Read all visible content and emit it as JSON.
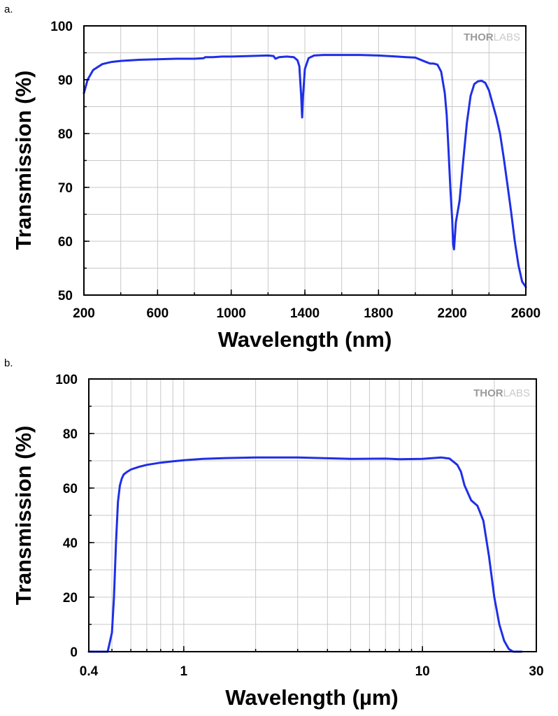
{
  "colors": {
    "series": "#1f2fe6",
    "grid": "#c8c8c8",
    "axis": "#000000",
    "watermark": "#a8a8a8"
  },
  "chart_data": [
    {
      "panel_label": "a.",
      "type": "line",
      "xlabel": "Wavelength (nm)",
      "ylabel": "Transmission (%)",
      "xlim": [
        200,
        2600
      ],
      "ylim": [
        50,
        100
      ],
      "x_scale": "linear",
      "grid": true,
      "x_ticks": [
        200,
        600,
        1000,
        1400,
        1800,
        2200,
        2600
      ],
      "x_tick_labels": [
        "200",
        "600",
        "1000",
        "1400",
        "1800",
        "2200",
        "2600"
      ],
      "y_ticks": [
        50,
        60,
        70,
        80,
        90,
        100
      ],
      "y_tick_labels": [
        "50",
        "60",
        "70",
        "80",
        "90",
        "100"
      ],
      "watermark": {
        "bold_part": "THOR",
        "light_part": "LABS"
      },
      "series": [
        {
          "x": [
            200,
            220,
            250,
            300,
            350,
            400,
            500,
            600,
            700,
            800,
            850,
            860,
            900,
            950,
            1000,
            1100,
            1200,
            1230,
            1240,
            1260,
            1300,
            1340,
            1360,
            1370,
            1380,
            1385,
            1390,
            1400,
            1420,
            1450,
            1500,
            1600,
            1700,
            1800,
            1900,
            1950,
            2000,
            2050,
            2080,
            2100,
            2120,
            2140,
            2160,
            2170,
            2180,
            2190,
            2200,
            2205,
            2210,
            2215,
            2220,
            2240,
            2260,
            2280,
            2300,
            2320,
            2340,
            2360,
            2380,
            2400,
            2420,
            2440,
            2460,
            2480,
            2500,
            2520,
            2540,
            2560,
            2580,
            2600
          ],
          "y": [
            87.5,
            90,
            91.8,
            92.9,
            93.3,
            93.5,
            93.7,
            93.8,
            93.9,
            93.9,
            94.0,
            94.2,
            94.2,
            94.3,
            94.3,
            94.4,
            94.5,
            94.4,
            93.9,
            94.2,
            94.3,
            94.2,
            93.6,
            92.5,
            87,
            83,
            87,
            92,
            94.0,
            94.5,
            94.6,
            94.6,
            94.6,
            94.5,
            94.3,
            94.2,
            94.1,
            93.4,
            93.0,
            93.0,
            92.8,
            91.5,
            87.5,
            83.5,
            77,
            70,
            64,
            59.5,
            58.5,
            61,
            63.5,
            67.5,
            75,
            82,
            87,
            89.2,
            89.7,
            89.8,
            89.4,
            88,
            85.5,
            83,
            80,
            75.5,
            70.5,
            65.5,
            60,
            55.5,
            52.5,
            51.5
          ]
        }
      ]
    },
    {
      "panel_label": "b.",
      "type": "line",
      "xlabel": "Wavelength (µm)",
      "ylabel": "Transmission (%)",
      "xlim": [
        0.4,
        30
      ],
      "ylim": [
        0,
        100
      ],
      "x_scale": "log",
      "grid": true,
      "x_ticks": [
        0.4,
        1,
        10,
        30
      ],
      "x_tick_labels": [
        "0.4",
        "1",
        "10",
        "30"
      ],
      "y_ticks": [
        0,
        20,
        40,
        60,
        80,
        100
      ],
      "y_tick_labels": [
        "0",
        "20",
        "40",
        "60",
        "80",
        "100"
      ],
      "watermark": {
        "bold_part": "THOR",
        "light_part": "LABS"
      },
      "series": [
        {
          "x": [
            0.4,
            0.48,
            0.5,
            0.51,
            0.52,
            0.53,
            0.54,
            0.55,
            0.56,
            0.58,
            0.6,
            0.65,
            0.7,
            0.8,
            0.9,
            1.0,
            1.2,
            1.5,
            2.0,
            3.0,
            5.0,
            7.0,
            8.0,
            10.0,
            12.0,
            13.0,
            14.0,
            14.5,
            15.0,
            16.0,
            17.0,
            18.0,
            19.0,
            20.0,
            21.0,
            22.0,
            23.0,
            24.0,
            26.0
          ],
          "y": [
            0,
            0,
            7,
            20,
            40,
            55,
            61,
            63.5,
            65,
            66,
            66.8,
            67.8,
            68.5,
            69.3,
            69.8,
            70.2,
            70.7,
            71.0,
            71.2,
            71.2,
            70.7,
            70.8,
            70.6,
            70.7,
            71.2,
            70.8,
            68.5,
            66,
            61,
            55.5,
            53.5,
            48,
            35,
            20,
            10,
            4,
            1,
            0,
            0
          ]
        }
      ]
    }
  ]
}
